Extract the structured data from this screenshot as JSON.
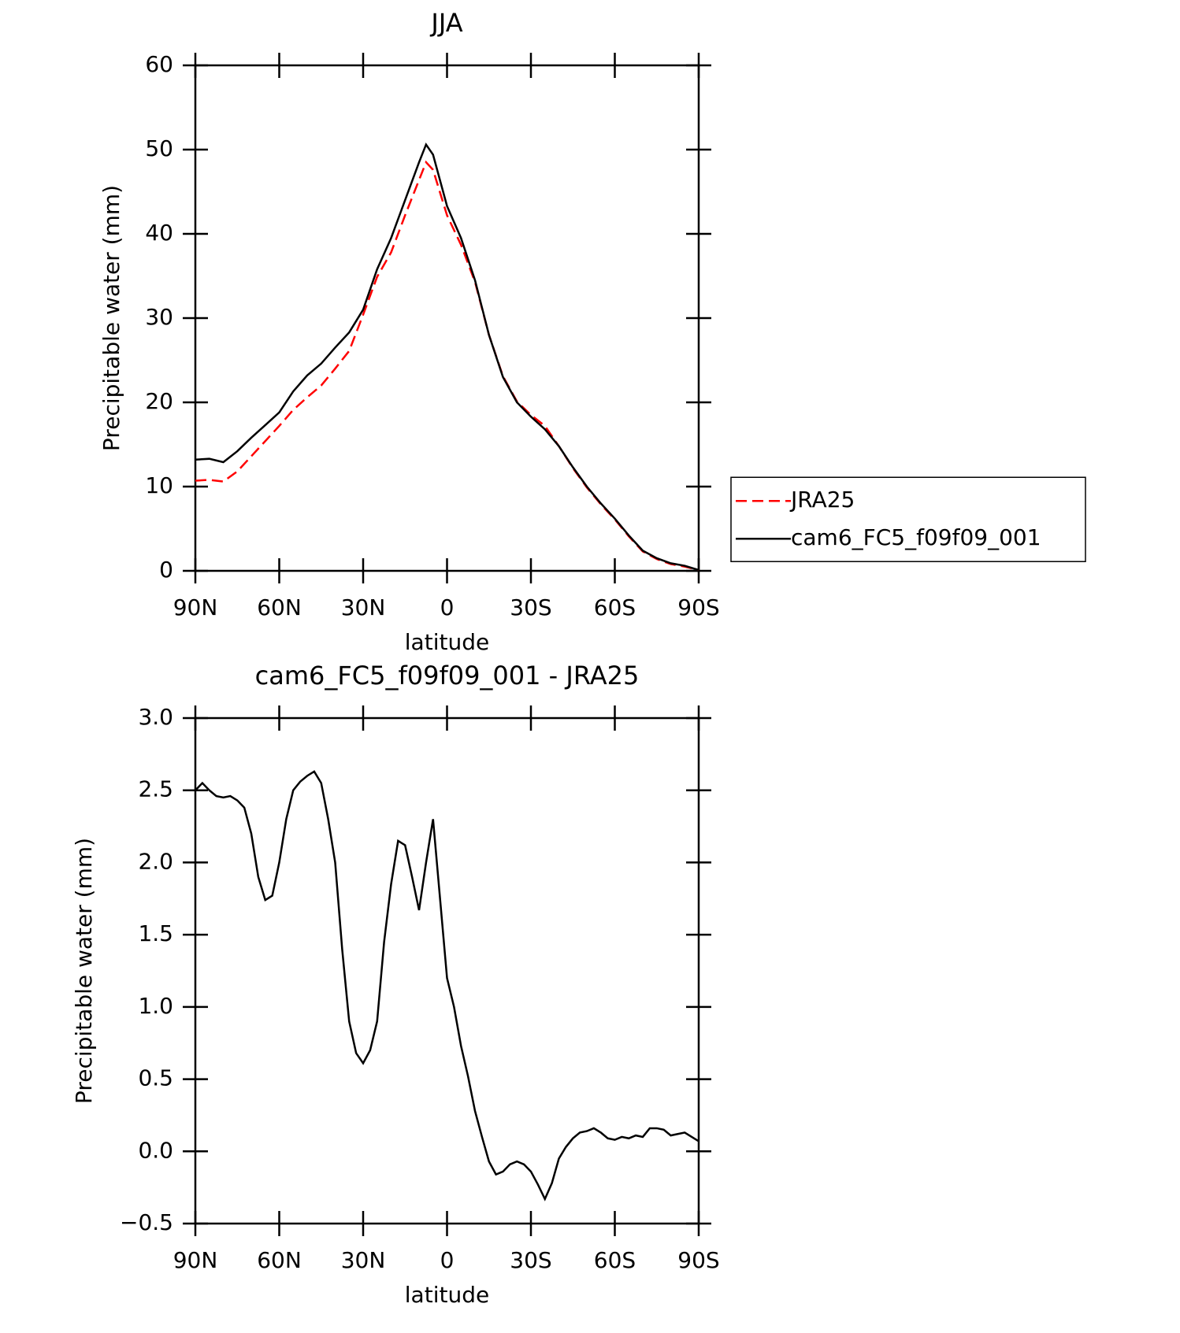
{
  "chart_data": [
    {
      "type": "line",
      "title": "JJA",
      "xlabel": "latitude",
      "ylabel": "Precipitable water (mm)",
      "x": [
        90,
        85,
        80,
        75,
        70,
        65,
        60,
        55,
        50,
        45,
        40,
        35,
        30,
        25,
        20,
        15,
        10,
        7.5,
        5,
        0,
        -5,
        -10,
        -15,
        -20,
        -25,
        -30,
        -35,
        -40,
        -45,
        -50,
        -55,
        -60,
        -65,
        -70,
        -75,
        -80,
        -85,
        -90
      ],
      "series": [
        {
          "name": "JRA25",
          "color": "#ff0000",
          "linestyle": "dashed",
          "values": [
            10.7,
            10.8,
            10.6,
            11.8,
            13.6,
            15.4,
            17.2,
            19.1,
            20.6,
            22.0,
            24.0,
            26.1,
            30.4,
            34.9,
            37.8,
            42.2,
            46.4,
            48.5,
            47.6,
            42.2,
            38.7,
            34.3,
            28.0,
            23.1,
            20.1,
            18.5,
            17.2,
            14.8,
            12.2,
            9.9,
            7.9,
            6.1,
            4.1,
            2.3,
            1.4,
            0.8,
            0.5,
            0.1
          ]
        },
        {
          "name": "cam6_FC5_f09f09_001",
          "color": "#000000",
          "linestyle": "solid",
          "values": [
            13.2,
            13.3,
            12.9,
            14.2,
            15.8,
            17.3,
            18.8,
            21.3,
            23.2,
            24.6,
            26.5,
            28.3,
            31.0,
            35.8,
            39.5,
            44.0,
            48.5,
            50.6,
            49.4,
            43.3,
            39.5,
            34.5,
            28.0,
            23.0,
            20.0,
            18.3,
            16.8,
            14.8,
            12.3,
            10.0,
            8.0,
            6.2,
            4.2,
            2.4,
            1.5,
            0.9,
            0.6,
            0.1
          ]
        }
      ],
      "xlim": [
        90,
        -90
      ],
      "xticks": [
        {
          "value": 90,
          "label": "90N"
        },
        {
          "value": 60,
          "label": "60N"
        },
        {
          "value": 30,
          "label": "30N"
        },
        0,
        {
          "value": -30,
          "label": "30S"
        },
        {
          "value": -60,
          "label": "60S"
        },
        {
          "value": -90,
          "label": "90S"
        }
      ],
      "ylim": [
        0,
        60
      ],
      "yticks": [
        0,
        10,
        20,
        30,
        40,
        50,
        60
      ],
      "legend": "right"
    },
    {
      "type": "line",
      "title": "cam6_FC5_f09f09_001 - JRA25",
      "xlabel": "latitude",
      "ylabel": "Precipitable water (mm)",
      "x": [
        90,
        87.5,
        85,
        82.5,
        80,
        77.5,
        75,
        72.5,
        70,
        67.5,
        65,
        62.5,
        60,
        57.5,
        55,
        52.5,
        50,
        47.5,
        45,
        42.5,
        40,
        37.5,
        35,
        32.5,
        30,
        27.5,
        25,
        22.5,
        20,
        17.5,
        15,
        12.5,
        10,
        7.5,
        5,
        2.5,
        0,
        -2.5,
        -5,
        -7.5,
        -10,
        -12.5,
        -15,
        -17.5,
        -20,
        -22.5,
        -25,
        -27.5,
        -30,
        -32.5,
        -35,
        -37.5,
        -40,
        -42.5,
        -45,
        -47.5,
        -50,
        -52.5,
        -55,
        -57.5,
        -60,
        -62.5,
        -65,
        -67.5,
        -70,
        -72.5,
        -75,
        -77.5,
        -80,
        -82.5,
        -85,
        -87.5,
        -90
      ],
      "series": [
        {
          "name": "cam6_FC5_f09f09_001 - JRA25",
          "color": "#000000",
          "linestyle": "solid",
          "values": [
            2.5,
            2.55,
            2.5,
            2.46,
            2.45,
            2.46,
            2.43,
            2.38,
            2.2,
            1.9,
            1.74,
            1.77,
            2.0,
            2.3,
            2.5,
            2.56,
            2.6,
            2.63,
            2.55,
            2.3,
            2.0,
            1.4,
            0.9,
            0.68,
            0.61,
            0.7,
            0.9,
            1.45,
            1.85,
            2.15,
            2.12,
            1.9,
            1.67,
            2.0,
            2.3,
            1.75,
            1.2,
            1.0,
            0.73,
            0.52,
            0.28,
            0.1,
            -0.07,
            -0.16,
            -0.14,
            -0.09,
            -0.07,
            -0.09,
            -0.14,
            -0.23,
            -0.33,
            -0.22,
            -0.05,
            0.03,
            0.09,
            0.13,
            0.14,
            0.16,
            0.13,
            0.09,
            0.08,
            0.1,
            0.09,
            0.11,
            0.1,
            0.16,
            0.16,
            0.15,
            0.11,
            0.12,
            0.13,
            0.1,
            0.07
          ]
        }
      ],
      "xlim": [
        90,
        -90
      ],
      "xticks": [
        {
          "value": 90,
          "label": "90N"
        },
        {
          "value": 60,
          "label": "60N"
        },
        {
          "value": 30,
          "label": "30N"
        },
        0,
        {
          "value": -30,
          "label": "30S"
        },
        {
          "value": -60,
          "label": "60S"
        },
        {
          "value": -90,
          "label": "90S"
        }
      ],
      "ylim": [
        -0.5,
        3.0
      ],
      "yticks": [
        {
          "value": -0.5,
          "label": "−0.5"
        },
        {
          "value": 0,
          "label": "0.0"
        },
        {
          "value": 0.5,
          "label": "0.5"
        },
        {
          "value": 1,
          "label": "1.0"
        },
        {
          "value": 1.5,
          "label": "1.5"
        },
        {
          "value": 2,
          "label": "2.0"
        },
        {
          "value": 2.5,
          "label": "2.5"
        },
        {
          "value": 3,
          "label": "3.0"
        }
      ]
    }
  ]
}
